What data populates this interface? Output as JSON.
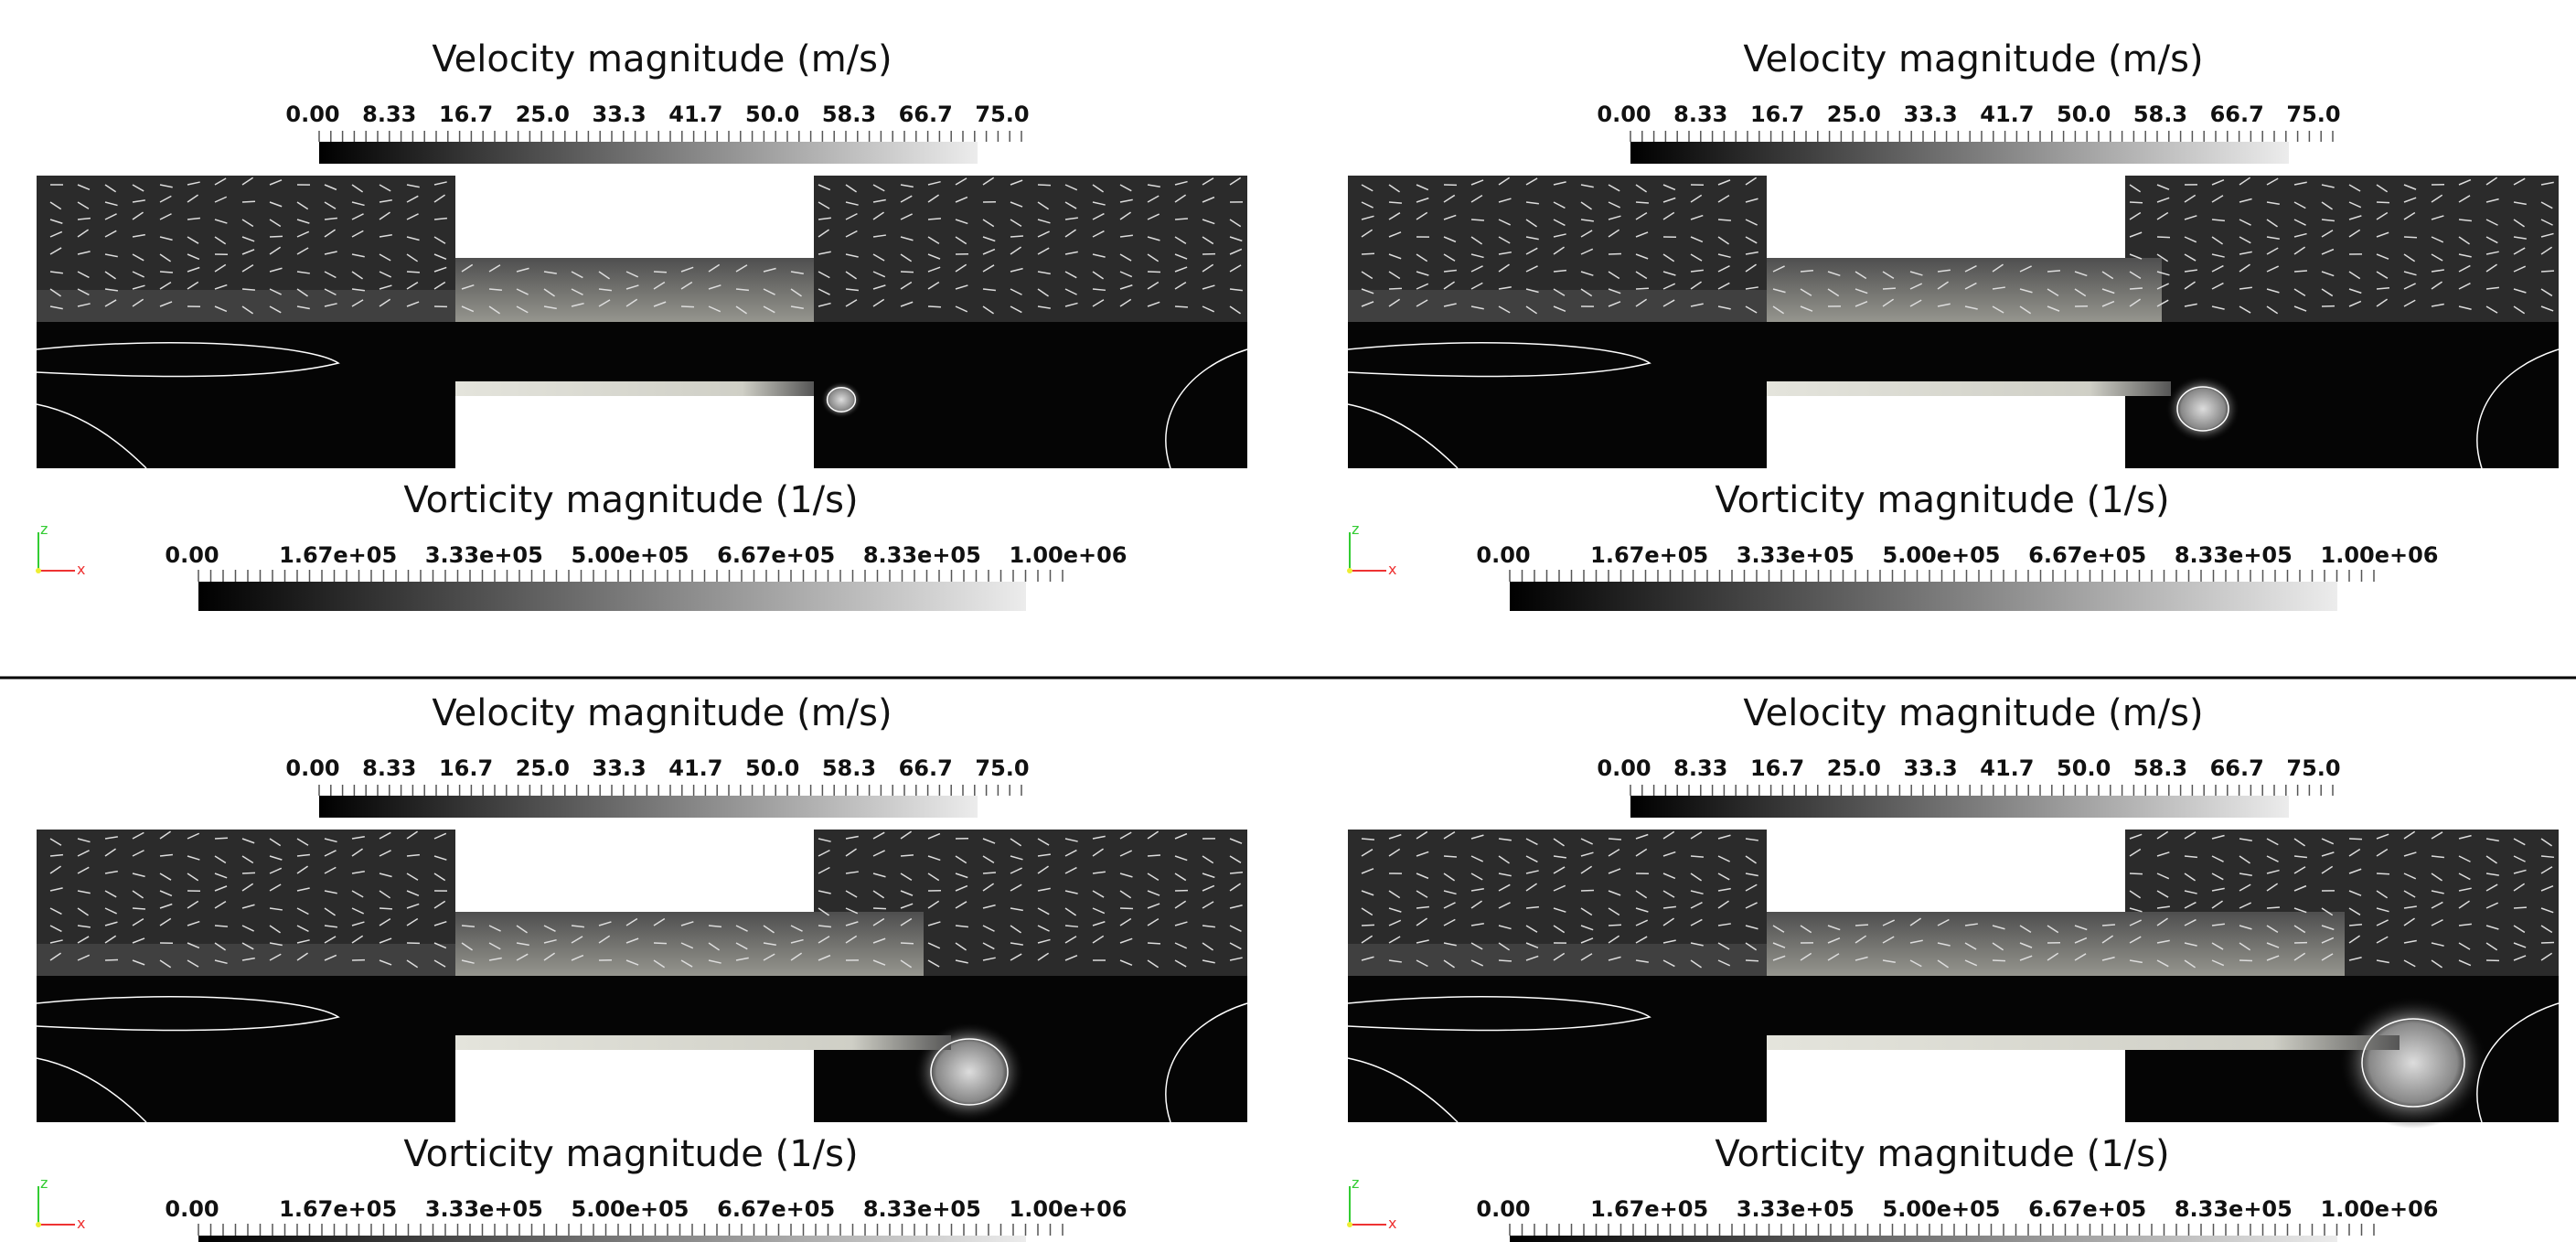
{
  "panels": [
    {
      "velocity_legend": {
        "title": "Velocity magnitude (m/s)",
        "labels": [
          "0.00",
          "8.33",
          "16.7",
          "25.0",
          "33.3",
          "41.7",
          "50.0",
          "58.3",
          "66.7",
          "75.0"
        ]
      },
      "vorticity_legend": {
        "title": "Vorticity magnitude (1/s)",
        "labels": [
          "0.00",
          "1.67e+05",
          "3.33e+05",
          "5.00e+05",
          "6.67e+05",
          "8.33e+05",
          "1.00e+06"
        ]
      },
      "axes": {
        "z": "z",
        "x": "x"
      }
    },
    {
      "velocity_legend": {
        "title": "Velocity magnitude (m/s)",
        "labels": [
          "0.00",
          "8.33",
          "16.7",
          "25.0",
          "33.3",
          "41.7",
          "50.0",
          "58.3",
          "66.7",
          "75.0"
        ]
      },
      "vorticity_legend": {
        "title": "Vorticity magnitude (1/s)",
        "labels": [
          "0.00",
          "1.67e+05",
          "3.33e+05",
          "5.00e+05",
          "6.67e+05",
          "8.33e+05",
          "1.00e+06"
        ]
      },
      "axes": {
        "z": "z",
        "x": "x"
      }
    },
    {
      "velocity_legend": {
        "title": "Velocity magnitude (m/s)",
        "labels": [
          "0.00",
          "8.33",
          "16.7",
          "25.0",
          "33.3",
          "41.7",
          "50.0",
          "58.3",
          "66.7",
          "75.0"
        ]
      },
      "vorticity_legend": {
        "title": "Vorticity magnitude (1/s)",
        "labels": [
          "0.00",
          "1.67e+05",
          "3.33e+05",
          "5.00e+05",
          "6.67e+05",
          "8.33e+05",
          "1.00e+06"
        ]
      },
      "axes": {
        "z": "z",
        "x": "x"
      }
    },
    {
      "velocity_legend": {
        "title": "Velocity magnitude (m/s)",
        "labels": [
          "0.00",
          "8.33",
          "16.7",
          "25.0",
          "33.3",
          "41.7",
          "50.0",
          "58.3",
          "66.7",
          "75.0"
        ]
      },
      "vorticity_legend": {
        "title": "Vorticity magnitude (1/s)",
        "labels": [
          "0.00",
          "1.67e+05",
          "3.33e+05",
          "5.00e+05",
          "6.67e+05",
          "8.33e+05",
          "1.00e+06"
        ]
      },
      "axes": {
        "z": "z",
        "x": "x"
      }
    }
  ]
}
